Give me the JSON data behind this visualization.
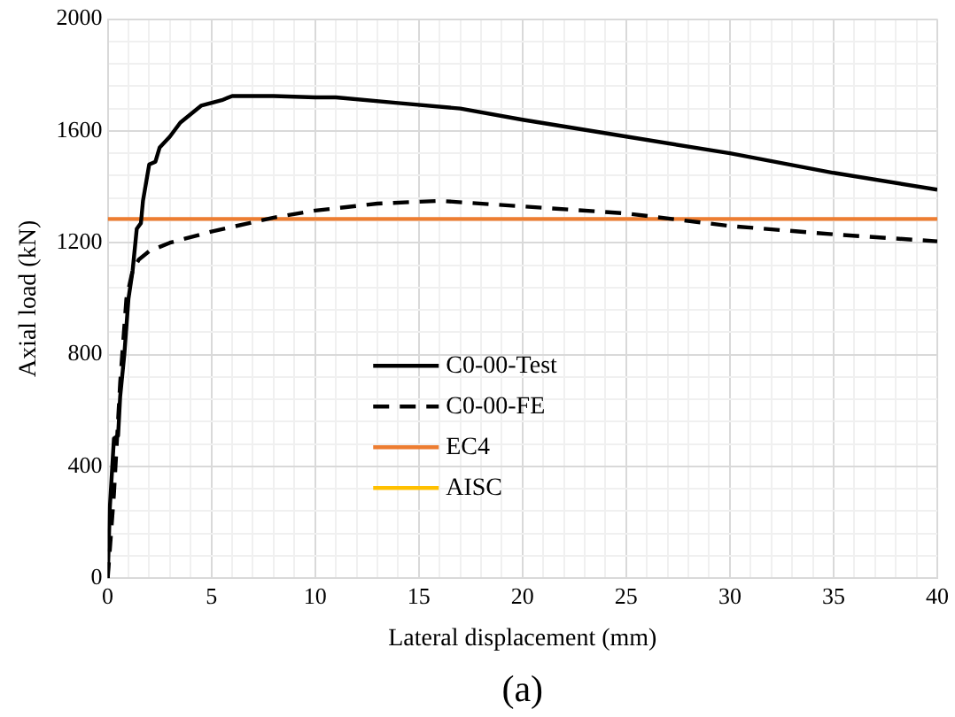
{
  "chart_data": {
    "type": "line",
    "xlabel": "Lateral displacement (mm)",
    "ylabel": "Axial load (kN)",
    "annotations": [
      "(a)"
    ],
    "xlim": [
      0,
      40
    ],
    "ylim": [
      0,
      2000
    ],
    "xticks": [
      0,
      {
        "value": 1,
        "label": null
      },
      {
        "value": 2,
        "label": null
      },
      {
        "value": 3,
        "label": null
      },
      {
        "value": 4,
        "label": null
      },
      5,
      {
        "value": 6,
        "label": null
      },
      {
        "value": 7,
        "label": null
      },
      {
        "value": 8,
        "label": null
      },
      {
        "value": 9,
        "label": null
      },
      10,
      {
        "value": 11,
        "label": null
      },
      {
        "value": 12,
        "label": null
      },
      {
        "value": 13,
        "label": null
      },
      {
        "value": 14,
        "label": null
      },
      15,
      {
        "value": 16,
        "label": null
      },
      {
        "value": 17,
        "label": null
      },
      {
        "value": 18,
        "label": null
      },
      {
        "value": 19,
        "label": null
      },
      20,
      {
        "value": 21,
        "label": null
      },
      {
        "value": 22,
        "label": null
      },
      {
        "value": 23,
        "label": null
      },
      {
        "value": 24,
        "label": null
      },
      25,
      {
        "value": 26,
        "label": null
      },
      {
        "value": 27,
        "label": null
      },
      {
        "value": 28,
        "label": null
      },
      {
        "value": 29,
        "label": null
      },
      30,
      {
        "value": 31,
        "label": null
      },
      {
        "value": 32,
        "label": null
      },
      {
        "value": 33,
        "label": null
      },
      {
        "value": 34,
        "label": null
      },
      35,
      {
        "value": 36,
        "label": null
      },
      {
        "value": 37,
        "label": null
      },
      {
        "value": 38,
        "label": null
      },
      {
        "value": 39,
        "label": null
      },
      40
    ],
    "yticks": [
      0,
      {
        "value": 80,
        "label": null
      },
      {
        "value": 160,
        "label": null
      },
      {
        "value": 240,
        "label": null
      },
      {
        "value": 320,
        "label": null
      },
      400,
      {
        "value": 480,
        "label": null
      },
      {
        "value": 560,
        "label": null
      },
      {
        "value": 640,
        "label": null
      },
      {
        "value": 720,
        "label": null
      },
      800,
      {
        "value": 880,
        "label": null
      },
      {
        "value": 960,
        "label": null
      },
      {
        "value": 1040,
        "label": null
      },
      {
        "value": 1120,
        "label": null
      },
      1200,
      {
        "value": 1280,
        "label": null
      },
      {
        "value": 1360,
        "label": null
      },
      {
        "value": 1440,
        "label": null
      },
      {
        "value": 1520,
        "label": null
      },
      1600,
      {
        "value": 1680,
        "label": null
      },
      {
        "value": 1760,
        "label": null
      },
      {
        "value": 1840,
        "label": null
      },
      {
        "value": 1920,
        "label": null
      },
      2000
    ],
    "grid": true,
    "legend": "center",
    "marker": "none",
    "series": [
      {
        "name": "C0-00-Test",
        "color": "#000000",
        "line_style": "solid",
        "x": [
          0,
          0.1,
          0.3,
          0.5,
          0.6,
          0.8,
          1.0,
          1.2,
          1.4,
          1.6,
          1.7,
          2.0,
          2.3,
          2.5,
          3.0,
          3.5,
          4.0,
          4.5,
          5.5,
          6,
          8,
          10,
          11,
          14,
          17,
          20,
          25,
          30,
          35,
          40
        ],
        "values": [
          0,
          250,
          500,
          510,
          650,
          800,
          1000,
          1100,
          1250,
          1270,
          1350,
          1480,
          1490,
          1540,
          1580,
          1630,
          1660,
          1690,
          1710,
          1725,
          1725,
          1720,
          1720,
          1700,
          1680,
          1640,
          1580,
          1520,
          1450,
          1390
        ]
      },
      {
        "name": "C0-00-FE",
        "color": "#000000",
        "line_style": "dashed",
        "x": [
          0,
          0.3,
          0.6,
          0.9,
          1.2,
          1.5,
          2,
          3,
          5,
          8,
          10,
          13,
          16,
          20,
          25,
          30,
          35,
          40
        ],
        "values": [
          0,
          300,
          700,
          1000,
          1100,
          1140,
          1170,
          1200,
          1240,
          1290,
          1315,
          1340,
          1350,
          1330,
          1305,
          1260,
          1230,
          1205
        ]
      },
      {
        "name": "EC4",
        "color": "#ed7d31",
        "line_style": "solid",
        "x": [
          0,
          40
        ],
        "values": [
          1285,
          1285
        ]
      },
      {
        "name": "AISC",
        "color": "#ffc000",
        "line_style": "solid"
      }
    ]
  }
}
